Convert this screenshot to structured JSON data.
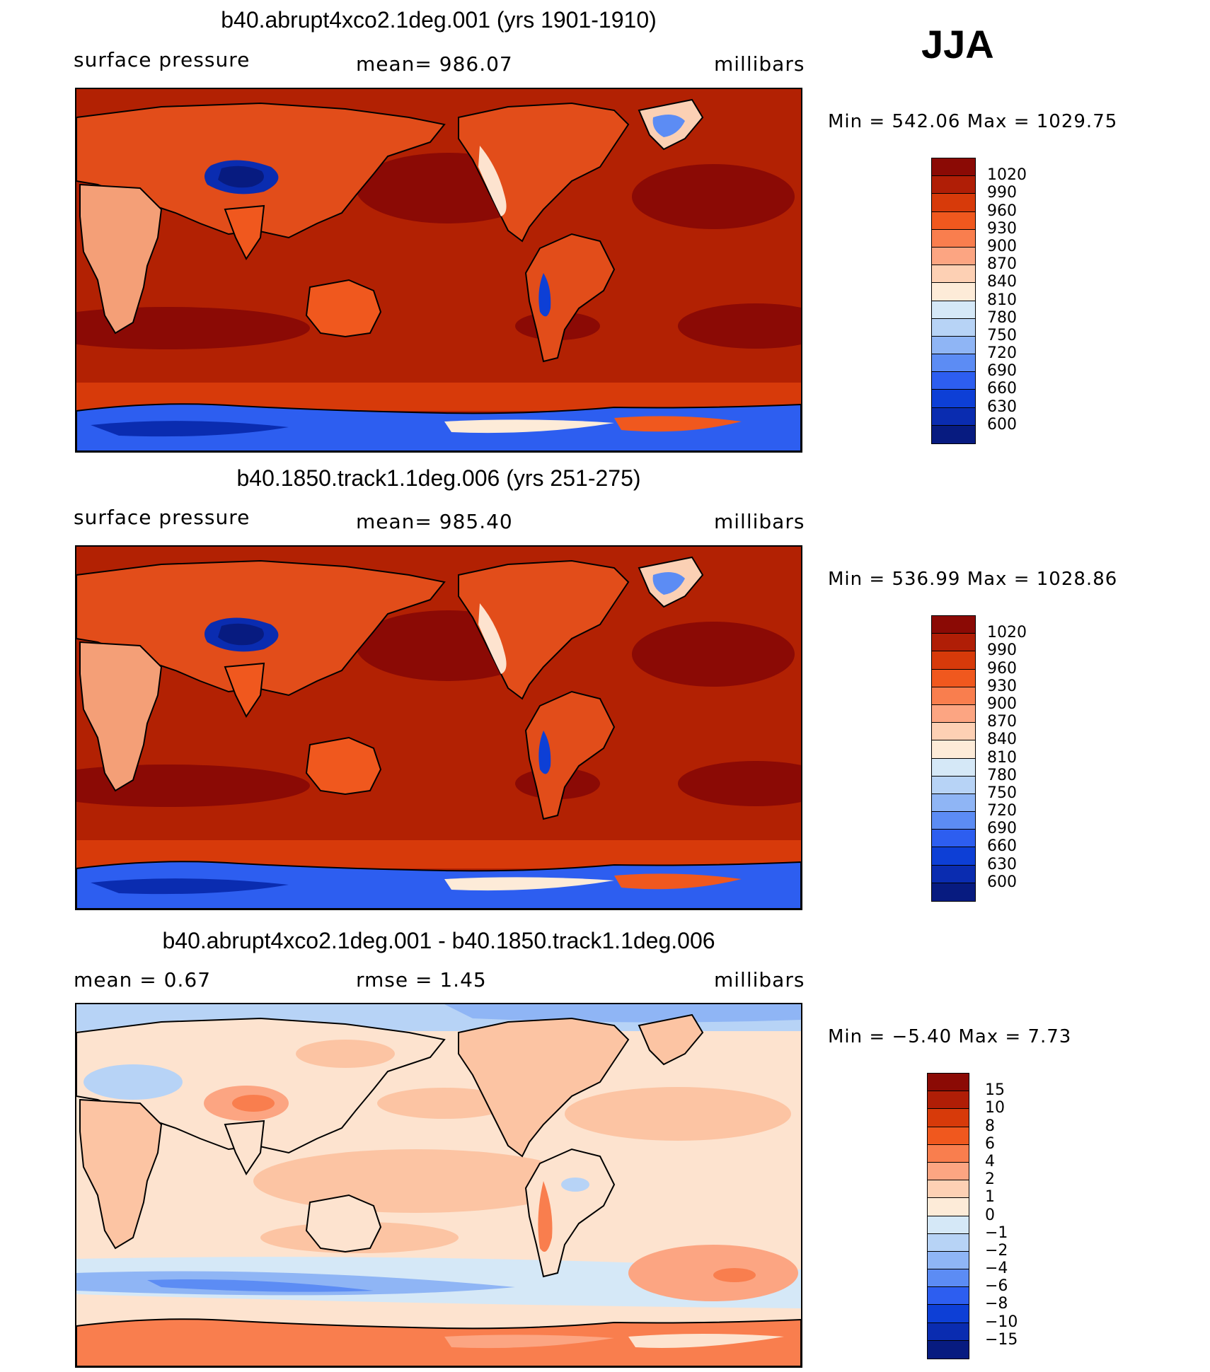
{
  "season": "JJA",
  "panels": [
    {
      "id": "p1",
      "title": "b40.abrupt4xco2.1deg.001 (yrs 1901-1910)",
      "left_label": "surface pressure",
      "mid_label": "mean= 986.07",
      "right_label": "millibars",
      "minmax": "Min  =  542.06  Max  =  1029.75",
      "ocean_color": "#b22103",
      "colorbar": {
        "colors": [
          "#8b0a05",
          "#b01e06",
          "#d73a0a",
          "#f0581e",
          "#f97e4e",
          "#fca582",
          "#fdd0b4",
          "#fdebd8",
          "#d5e8f7",
          "#b7d3f6",
          "#8fb5f5",
          "#5c8cf4",
          "#2d5ef0",
          "#0d3fd6",
          "#0a2cb0",
          "#071b80"
        ],
        "labels": [
          "1020",
          "990",
          "960",
          "930",
          "900",
          "870",
          "840",
          "810",
          "780",
          "750",
          "720",
          "690",
          "660",
          "630",
          "600"
        ]
      }
    },
    {
      "id": "p2",
      "title": "b40.1850.track1.1deg.006 (yrs 251-275)",
      "left_label": "surface pressure",
      "mid_label": "mean= 985.40",
      "right_label": "millibars",
      "minmax": "Min  =  536.99  Max  =  1028.86",
      "ocean_color": "#b22103",
      "colorbar": {
        "colors": [
          "#8b0a05",
          "#b01e06",
          "#d73a0a",
          "#f0581e",
          "#f97e4e",
          "#fca582",
          "#fdd0b4",
          "#fdebd8",
          "#d5e8f7",
          "#b7d3f6",
          "#8fb5f5",
          "#5c8cf4",
          "#2d5ef0",
          "#0d3fd6",
          "#0a2cb0",
          "#071b80"
        ],
        "labels": [
          "1020",
          "990",
          "960",
          "930",
          "900",
          "870",
          "840",
          "810",
          "780",
          "750",
          "720",
          "690",
          "660",
          "630",
          "600"
        ]
      }
    },
    {
      "id": "p3",
      "title": "b40.abrupt4xco2.1deg.001 - b40.1850.track1.1deg.006",
      "left_label": "mean  =     0.67",
      "mid_label": "rmse  =     1.45",
      "right_label": "millibars",
      "minmax": "Min  =   −5.40  Max  =      7.73",
      "ocean_color": "#fde3cf",
      "colorbar": {
        "colors": [
          "#8b0a05",
          "#b01e06",
          "#d73a0a",
          "#f0581e",
          "#f97e4e",
          "#fca582",
          "#fdd0b4",
          "#fdebd8",
          "#d5e8f7",
          "#b7d3f6",
          "#8fb5f5",
          "#5c8cf4",
          "#2d5ef0",
          "#0d3fd6",
          "#0a2cb0",
          "#071b80"
        ],
        "labels": [
          "15",
          "10",
          "8",
          "6",
          "4",
          "2",
          "1",
          "0",
          "−1",
          "−2",
          "−4",
          "−6",
          "−8",
          "−10",
          "−15"
        ]
      }
    }
  ]
}
